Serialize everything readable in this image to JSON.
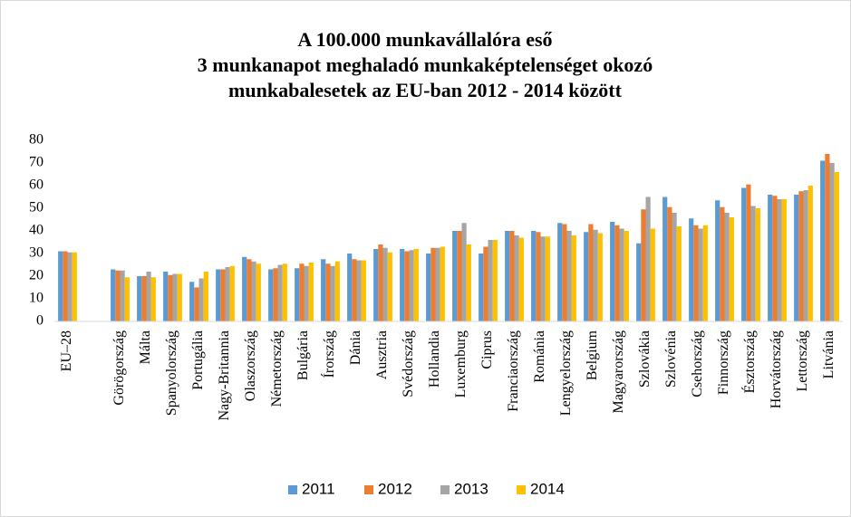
{
  "chart_data": {
    "type": "bar",
    "title": [
      "A 100.000 munkavállalóra eső",
      "3 munkanapot meghaladó munkaképtelenséget okozó",
      "munkabalesetek az EU-ban 2012 - 2014 között"
    ],
    "categories": [
      "EU–28",
      null,
      "Görögország",
      "Málta",
      "Spanyolország",
      "Portugália",
      "Nagy-Britannia",
      "Olaszország",
      "Németország",
      "Bulgária",
      "Írország",
      "Dánia",
      "Ausztria",
      "Svédország",
      "Hollandia",
      "Luxemburg",
      "Ciprus",
      "Franciaország",
      "Románia",
      "Lengyelország",
      "Belgium",
      "Magyarország",
      "Szlovákia",
      "Szlovénia",
      "Csehország",
      "Finnország",
      "Észtország",
      "Horvátország",
      "Lettország",
      "Litvánia"
    ],
    "series": [
      {
        "name": "2011",
        "color": "#5b9bd5",
        "values": [
          31,
          null,
          23,
          20,
          22,
          17.5,
          23,
          28.5,
          23,
          23.5,
          27.5,
          30,
          32,
          32,
          30,
          40,
          30,
          40,
          40,
          43.5,
          39.5,
          44,
          34.5,
          55,
          45.5,
          53.5,
          59,
          56,
          56,
          71
        ]
      },
      {
        "name": "2012",
        "color": "#ed7d31",
        "values": [
          31,
          null,
          22.5,
          20,
          20.5,
          15,
          23,
          27.5,
          23.5,
          25.5,
          25.5,
          27.5,
          34,
          31,
          32.5,
          40,
          33,
          40,
          39.5,
          43,
          43,
          42.5,
          49.5,
          50.5,
          42.5,
          50.5,
          60.5,
          55.5,
          57.5,
          74
        ]
      },
      {
        "name": "2013",
        "color": "#a5a5a5",
        "values": [
          30.5,
          null,
          22.5,
          22,
          21,
          19,
          24,
          26.5,
          25,
          24.5,
          24.5,
          27,
          32.5,
          31.5,
          32.5,
          43.5,
          36,
          38,
          37.5,
          40,
          40.5,
          41,
          55,
          48,
          41,
          48,
          51,
          54,
          58,
          70
        ]
      },
      {
        "name": "2014",
        "color": "#ffc000",
        "values": [
          30.5,
          null,
          19.5,
          19.5,
          21,
          22,
          24.5,
          25.5,
          25.5,
          26,
          26.5,
          27,
          30.5,
          32,
          33,
          34,
          36,
          37,
          37.5,
          38,
          39,
          40,
          41,
          42,
          42.5,
          46,
          50,
          54,
          60,
          66
        ]
      }
    ],
    "ylim": [
      0,
      80
    ],
    "yticks": [
      0,
      10,
      20,
      30,
      40,
      50,
      60,
      70,
      80
    ],
    "grid": false,
    "legend": "bottom"
  }
}
